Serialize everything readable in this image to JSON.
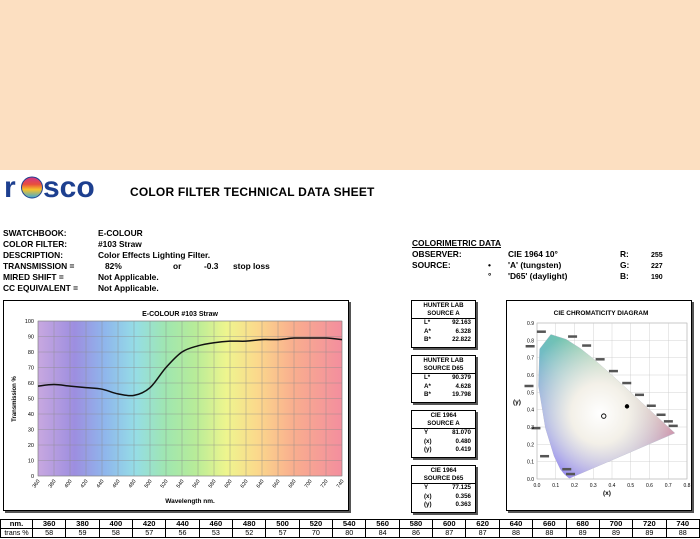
{
  "swatch_color": "#FCDFC1",
  "header": {
    "brand": "rosco",
    "title": "COLOR FILTER TECHNICAL DATA SHEET"
  },
  "info": {
    "swatchbook": {
      "label": "SWATCHBOOK:",
      "value": "E-COLOUR"
    },
    "color_filter": {
      "label": "COLOR FILTER:",
      "value": "#103 Straw"
    },
    "description": {
      "label": "DESCRIPTION:",
      "value": "Color Effects Lighting Filter."
    },
    "transmission": {
      "label": "TRANSMISSION =",
      "value": "82%",
      "or": "or",
      "stop": "-0.3",
      "stop_label": "stop loss"
    },
    "mired_shift": {
      "label": "MIRED SHIFT =",
      "value": "Not Applicable."
    },
    "cc_equivalent": {
      "label": "CC EQUIVALENT =",
      "value": "Not Applicable."
    }
  },
  "colorimetric": {
    "heading": "COLORIMETRIC DATA",
    "observer_label": "OBSERVER:",
    "observer_value": "CIE 1964 10°",
    "source_label": "SOURCE:",
    "source_a_mark": "•",
    "source_a": "'A' (tungsten)",
    "source_d65_mark": "°",
    "source_d65": "'D65' (daylight)",
    "r_label": "R:",
    "r_value": "255",
    "g_label": "G:",
    "g_value": "227",
    "b_label": "B:",
    "b_value": "190"
  },
  "boxes": [
    {
      "line1": "HUNTER LAB",
      "line2": "SOURCE A",
      "rows": [
        {
          "k": "L*",
          "v": "92.163"
        },
        {
          "k": "A*",
          "v": "6.328"
        },
        {
          "k": "B*",
          "v": "22.822"
        }
      ]
    },
    {
      "line1": "HUNTER LAB",
      "line2": "SOURCE D65",
      "rows": [
        {
          "k": "L*",
          "v": "90.379"
        },
        {
          "k": "A*",
          "v": "4.628"
        },
        {
          "k": "B*",
          "v": "19.798"
        }
      ]
    },
    {
      "line1": "CIE 1964",
      "line2": "SOURCE A",
      "rows": [
        {
          "k": "Y",
          "v": "81.070"
        },
        {
          "k": "(x)",
          "v": "0.480"
        },
        {
          "k": "(y)",
          "v": "0.419"
        }
      ]
    },
    {
      "line1": "CIE 1964",
      "line2": "SOURCE D65",
      "rows": [
        {
          "k": "Y",
          "v": "77.125"
        },
        {
          "k": "(x)",
          "v": "0.356"
        },
        {
          "k": "(y)",
          "v": "0.363"
        }
      ]
    }
  ],
  "chart_data": [
    {
      "type": "line",
      "title": "E-COLOUR #103 Straw",
      "xlabel": "Wavelength nm.",
      "ylabel": "Transmission %",
      "x": [
        360,
        380,
        400,
        420,
        440,
        460,
        480,
        500,
        520,
        540,
        560,
        580,
        600,
        620,
        640,
        660,
        680,
        700,
        720,
        740
      ],
      "series": [
        {
          "values": [
            58,
            59,
            58,
            57,
            56,
            53,
            52,
            57,
            70,
            80,
            84,
            86,
            87,
            87,
            88,
            88,
            89,
            89,
            89,
            88
          ]
        }
      ],
      "xticks": [
        "360",
        "380",
        "400",
        "420",
        "440",
        "460",
        "480",
        "500",
        "520",
        "540",
        "560",
        "580",
        "600",
        "620",
        "640",
        "660",
        "680",
        "700",
        "720",
        "740"
      ],
      "yticks": [
        "0",
        "10",
        "20",
        "30",
        "40",
        "50",
        "60",
        "70",
        "80",
        "90",
        "100"
      ],
      "xlim": [
        360,
        740
      ],
      "ylim": [
        0,
        100
      ],
      "grid": true
    },
    {
      "type": "scatter",
      "title": "CIE CHROMATICITY DIAGRAM",
      "xlabel": "(x)",
      "ylabel": "(y)",
      "xlim": [
        0,
        0.8
      ],
      "ylim": [
        0,
        0.9
      ],
      "xticks": [
        "0.0",
        "0.1",
        "0.2",
        "0.3",
        "0.4",
        "0.5",
        "0.6",
        "0.7",
        "0.8"
      ],
      "yticks": [
        "0.0",
        "0.1",
        "0.2",
        "0.3",
        "0.4",
        "0.5",
        "0.6",
        "0.7",
        "0.8",
        "0.9"
      ],
      "points": [
        {
          "x": 0.48,
          "y": 0.419,
          "source": "A",
          "marker": "•"
        },
        {
          "x": 0.356,
          "y": 0.363,
          "source": "D65",
          "marker": "°"
        }
      ]
    }
  ],
  "table": {
    "nm_label": "nm.",
    "trans_label": "trans %",
    "nm": [
      "360",
      "380",
      "400",
      "420",
      "440",
      "460",
      "480",
      "500",
      "520",
      "540",
      "560",
      "580",
      "600",
      "620",
      "640",
      "660",
      "680",
      "700",
      "720",
      "740"
    ],
    "trans": [
      "58",
      "59",
      "58",
      "57",
      "56",
      "53",
      "52",
      "57",
      "70",
      "80",
      "84",
      "86",
      "87",
      "87",
      "88",
      "88",
      "89",
      "89",
      "89",
      "88"
    ]
  }
}
